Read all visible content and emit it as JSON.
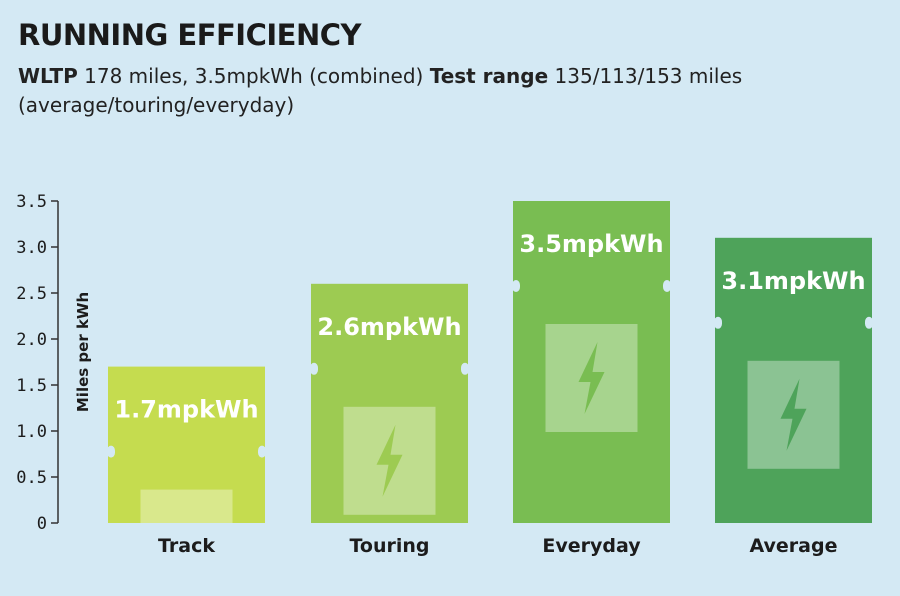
{
  "header": {
    "title": "RUNNING EFFICIENCY",
    "wltp_label": "WLTP",
    "wltp_text": " 178 miles, 3.5mpkWh (combined) ",
    "test_label": "Test range",
    "test_text": " 135/113/153 miles (average/touring/everyday)"
  },
  "chart_data": {
    "type": "bar",
    "title": "RUNNING EFFICIENCY",
    "ylabel": "Miles per kWh",
    "xlabel": "",
    "ylim": [
      0,
      3.5
    ],
    "yticks": [
      "0",
      "0.5",
      "1.0",
      "1.5",
      "2.0",
      "2.5",
      "3.0",
      "3.5"
    ],
    "yticks_values": [
      0,
      0.5,
      1.0,
      1.5,
      2.0,
      2.5,
      3.0,
      3.5
    ],
    "categories": [
      "Track",
      "Touring",
      "Everyday",
      "Average"
    ],
    "values": [
      1.7,
      2.6,
      3.5,
      3.1
    ],
    "data_labels": [
      "1.7mpkWh",
      "2.6mpkWh",
      "3.5mpkWh",
      "3.1mpkWh"
    ],
    "colors": [
      "#c5dc4f",
      "#9dcb52",
      "#79bd52",
      "#4ea35a"
    ],
    "grid": false,
    "legend": "none"
  },
  "icon": "lightning-bolt-icon"
}
